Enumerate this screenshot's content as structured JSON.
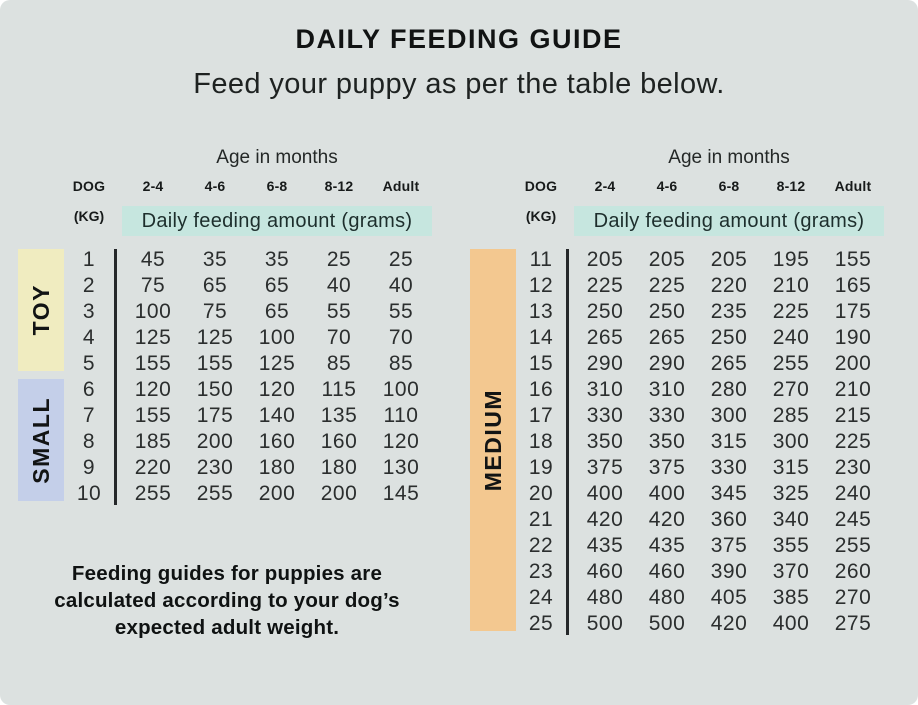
{
  "page": {
    "title": "DAILY FEEDING GUIDE",
    "subtitle": "Feed your puppy as per the table below.",
    "footnote": "Feeding guides for puppies are calculated according to your dog’s expected adult weight."
  },
  "colors": {
    "background": "#dce1e0",
    "toy": "#f0ecc0",
    "small": "#c4cfe9",
    "medium": "#f3c890",
    "highlight_band": "#c6e6df",
    "divider": "#25282a",
    "text": "#2b2e2e"
  },
  "tables": [
    {
      "id": "toy-small",
      "age_header": "Age in months",
      "dog_label": "DOG",
      "kg_label": "(KG)",
      "band_label": "Daily feeding amount (grams)",
      "columns": [
        "2-4",
        "4-6",
        "6-8",
        "8-12",
        "Adult"
      ],
      "groups": [
        {
          "label": "TOY",
          "color_key": "toy",
          "row_start": 0,
          "row_count": 5
        },
        {
          "label": "SMALL",
          "color_key": "small",
          "row_start": 5,
          "row_count": 5
        }
      ],
      "rows": [
        {
          "kg": "1",
          "values": [
            "45",
            "35",
            "35",
            "25",
            "25"
          ]
        },
        {
          "kg": "2",
          "values": [
            "75",
            "65",
            "65",
            "40",
            "40"
          ]
        },
        {
          "kg": "3",
          "values": [
            "100",
            "75",
            "65",
            "55",
            "55"
          ]
        },
        {
          "kg": "4",
          "values": [
            "125",
            "125",
            "100",
            "70",
            "70"
          ]
        },
        {
          "kg": "5",
          "values": [
            "155",
            "155",
            "125",
            "85",
            "85"
          ]
        },
        {
          "kg": "6",
          "values": [
            "120",
            "150",
            "120",
            "115",
            "100"
          ]
        },
        {
          "kg": "7",
          "values": [
            "155",
            "175",
            "140",
            "135",
            "110"
          ]
        },
        {
          "kg": "8",
          "values": [
            "185",
            "200",
            "160",
            "160",
            "120"
          ]
        },
        {
          "kg": "9",
          "values": [
            "220",
            "230",
            "180",
            "180",
            "130"
          ]
        },
        {
          "kg": "10",
          "values": [
            "255",
            "255",
            "200",
            "200",
            "145"
          ]
        }
      ]
    },
    {
      "id": "medium",
      "age_header": "Age in months",
      "dog_label": "DOG",
      "kg_label": "(KG)",
      "band_label": "Daily feeding amount (grams)",
      "columns": [
        "2-4",
        "4-6",
        "6-8",
        "8-12",
        "Adult"
      ],
      "groups": [
        {
          "label": "MEDIUM",
          "color_key": "medium",
          "row_start": 0,
          "row_count": 15
        }
      ],
      "rows": [
        {
          "kg": "11",
          "values": [
            "205",
            "205",
            "205",
            "195",
            "155"
          ]
        },
        {
          "kg": "12",
          "values": [
            "225",
            "225",
            "220",
            "210",
            "165"
          ]
        },
        {
          "kg": "13",
          "values": [
            "250",
            "250",
            "235",
            "225",
            "175"
          ]
        },
        {
          "kg": "14",
          "values": [
            "265",
            "265",
            "250",
            "240",
            "190"
          ]
        },
        {
          "kg": "15",
          "values": [
            "290",
            "290",
            "265",
            "255",
            "200"
          ]
        },
        {
          "kg": "16",
          "values": [
            "310",
            "310",
            "280",
            "270",
            "210"
          ]
        },
        {
          "kg": "17",
          "values": [
            "330",
            "330",
            "300",
            "285",
            "215"
          ]
        },
        {
          "kg": "18",
          "values": [
            "350",
            "350",
            "315",
            "300",
            "225"
          ]
        },
        {
          "kg": "19",
          "values": [
            "375",
            "375",
            "330",
            "315",
            "230"
          ]
        },
        {
          "kg": "20",
          "values": [
            "400",
            "400",
            "345",
            "325",
            "240"
          ]
        },
        {
          "kg": "21",
          "values": [
            "420",
            "420",
            "360",
            "340",
            "245"
          ]
        },
        {
          "kg": "22",
          "values": [
            "435",
            "435",
            "375",
            "355",
            "255"
          ]
        },
        {
          "kg": "23",
          "values": [
            "460",
            "460",
            "390",
            "370",
            "260"
          ]
        },
        {
          "kg": "24",
          "values": [
            "480",
            "480",
            "405",
            "385",
            "270"
          ]
        },
        {
          "kg": "25",
          "values": [
            "500",
            "500",
            "420",
            "400",
            "275"
          ]
        }
      ]
    }
  ]
}
